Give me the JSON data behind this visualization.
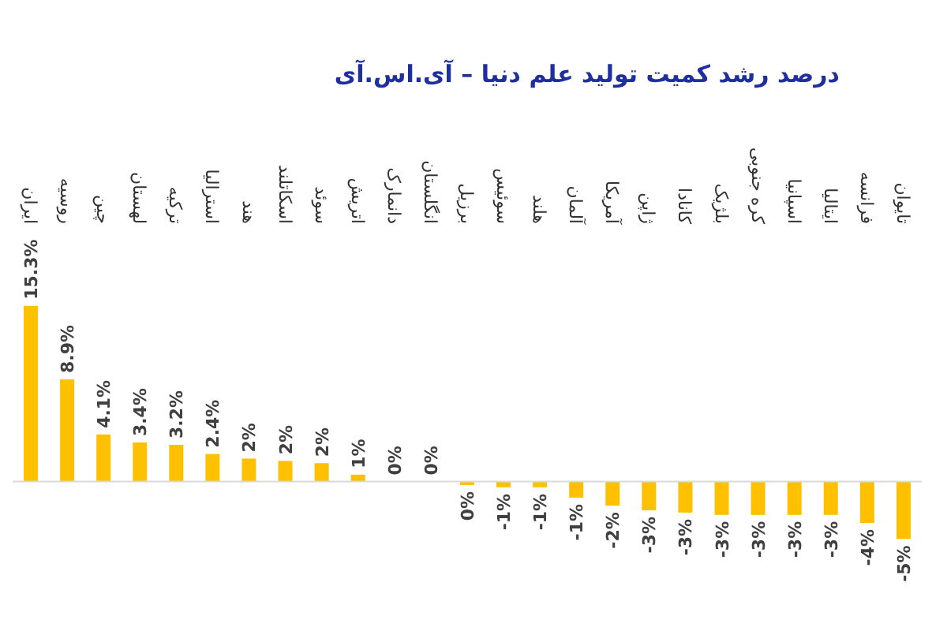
{
  "chart_data": {
    "type": "bar",
    "title": "درصد رشد کمیت تولید علم دنیا – آی.اس.آی",
    "categories": [
      "ایران",
      "روسیه",
      "چین",
      "لهستان",
      "ترکیه",
      "استرالیا",
      "هند",
      "اسکاتلند",
      "سوئد",
      "اتریش",
      "دانمارک",
      "انگلستان",
      "برزیل",
      "سوئیس",
      "هلند",
      "آلمان",
      "آمریکا",
      "ژاپن",
      "کانادا",
      "بلژیک",
      "کره جنوبی",
      "اسپانیا",
      "ایتالیا",
      "فرانسه",
      "تایوان"
    ],
    "values": [
      15.3,
      8.9,
      4.1,
      3.4,
      3.2,
      2.4,
      2.0,
      1.8,
      1.6,
      0.6,
      0,
      0,
      -0.3,
      -0.5,
      -0.5,
      -1.4,
      -2.1,
      -2.5,
      -2.7,
      -2.9,
      -2.9,
      -2.9,
      -2.9,
      -3.6,
      -5.0
    ],
    "value_labels": [
      "15.3%",
      "8.9%",
      "4.1%",
      "3.4%",
      "3.2%",
      "2.4%",
      "2%",
      "2%",
      "2%",
      "1%",
      "0%",
      "0%",
      "0%",
      "-1%",
      "-1%",
      "-1%",
      "-2%",
      "-3%",
      "-3%",
      "-3%",
      "-3%",
      "-3%",
      "-3%",
      "-4%",
      "-5%"
    ],
    "color": "#ffc000",
    "grid": false,
    "legend": false
  }
}
